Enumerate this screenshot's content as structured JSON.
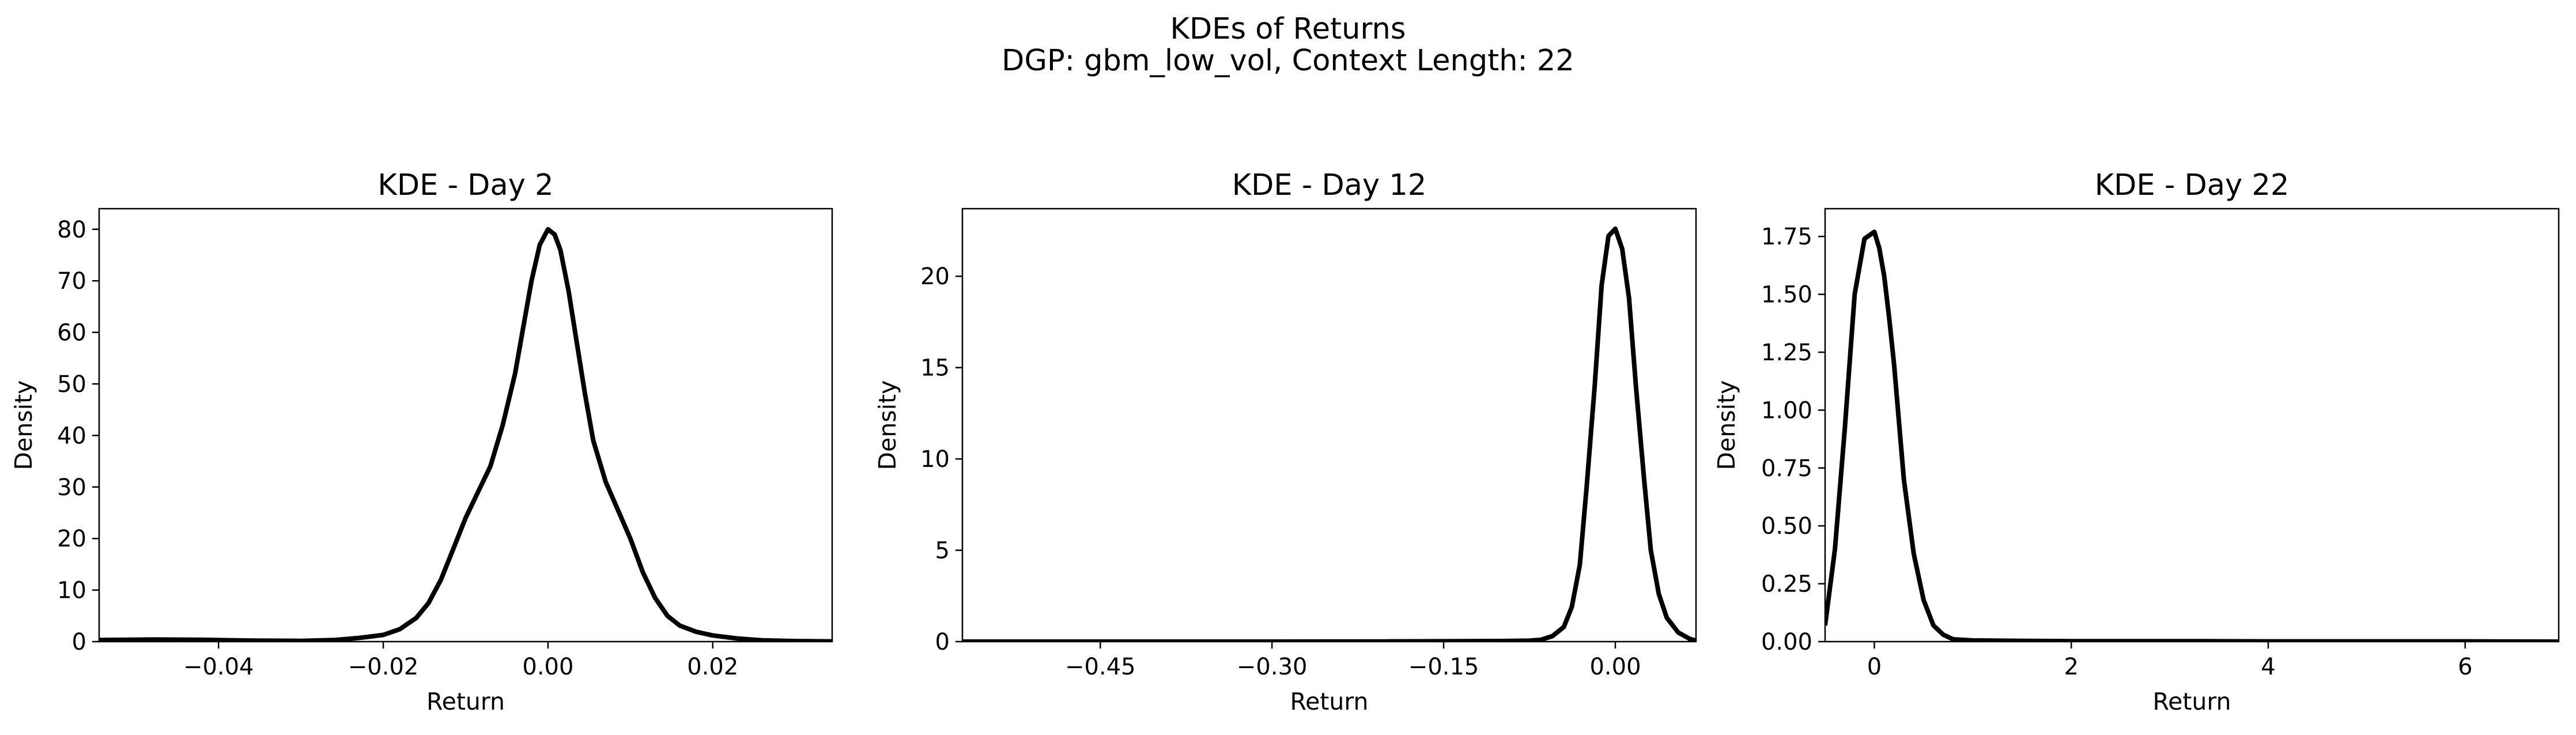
{
  "suptitle": [
    "KDEs of Returns",
    "DGP: gbm_low_vol, Context Length: 22"
  ],
  "chart_data": [
    {
      "type": "line",
      "title": "KDE - Day 2",
      "xlabel": "Return",
      "ylabel": "Density",
      "xlim": [
        -0.0545,
        0.0345
      ],
      "ylim": [
        0,
        84
      ],
      "xticks": [
        -0.04,
        -0.02,
        0.0,
        0.02
      ],
      "xtick_labels": [
        "−0.04",
        "−0.02",
        "0.00",
        "0.02"
      ],
      "yticks": [
        0,
        10,
        20,
        30,
        40,
        50,
        60,
        70,
        80
      ],
      "ytick_labels": [
        "0",
        "10",
        "20",
        "30",
        "40",
        "50",
        "60",
        "70",
        "80"
      ],
      "grid": false,
      "series": [
        {
          "color": "#000000",
          "x": [
            -0.0545,
            -0.048,
            -0.042,
            -0.036,
            -0.03,
            -0.026,
            -0.023,
            -0.02,
            -0.018,
            -0.016,
            -0.0145,
            -0.013,
            -0.0115,
            -0.01,
            -0.0085,
            -0.007,
            -0.0055,
            -0.004,
            -0.003,
            -0.002,
            -0.001,
            0.0,
            0.0008,
            0.0015,
            0.0025,
            0.0035,
            0.0045,
            0.0055,
            0.007,
            0.0085,
            0.01,
            0.0115,
            0.013,
            0.0145,
            0.016,
            0.018,
            0.02,
            0.023,
            0.026,
            0.03,
            0.0345
          ],
          "y": [
            0.3,
            0.4,
            0.35,
            0.2,
            0.15,
            0.3,
            0.7,
            1.3,
            2.4,
            4.6,
            7.5,
            12,
            18,
            24,
            29,
            34,
            42,
            52,
            61,
            70,
            77,
            80,
            79,
            76,
            68,
            58,
            48,
            39,
            31,
            25.5,
            20,
            13.5,
            8.5,
            5,
            3.1,
            1.9,
            1.2,
            0.6,
            0.25,
            0.1,
            0.05
          ]
        }
      ]
    },
    {
      "type": "line",
      "title": "KDE - Day 12",
      "xlabel": "Return",
      "ylabel": "Density",
      "xlim": [
        -0.5705,
        0.0705
      ],
      "ylim": [
        0,
        23.7
      ],
      "xticks": [
        -0.45,
        -0.3,
        -0.15,
        0.0
      ],
      "xtick_labels": [
        "−0.45",
        "−0.30",
        "−0.15",
        "0.00"
      ],
      "yticks": [
        0,
        5,
        10,
        15,
        20
      ],
      "ytick_labels": [
        "0",
        "5",
        "10",
        "15",
        "20"
      ],
      "grid": false,
      "series": [
        {
          "color": "#000000",
          "x": [
            -0.5705,
            -0.45,
            -0.3,
            -0.2,
            -0.15,
            -0.1,
            -0.075,
            -0.065,
            -0.055,
            -0.045,
            -0.038,
            -0.031,
            -0.025,
            -0.018,
            -0.012,
            -0.006,
            0.0,
            0.006,
            0.012,
            0.018,
            0.025,
            0.031,
            0.038,
            0.045,
            0.055,
            0.065,
            0.0705
          ],
          "y": [
            0,
            0,
            0,
            0.01,
            0.02,
            0.03,
            0.05,
            0.1,
            0.3,
            0.8,
            1.9,
            4.2,
            8.5,
            14,
            19.5,
            22.2,
            22.6,
            21.5,
            18.8,
            14,
            9,
            5,
            2.6,
            1.3,
            0.5,
            0.15,
            0.05
          ]
        }
      ]
    },
    {
      "type": "line",
      "title": "KDE - Day 22",
      "xlabel": "Return",
      "ylabel": "Density",
      "xlim": [
        -0.5,
        6.95
      ],
      "ylim": [
        0,
        1.87
      ],
      "xticks": [
        0,
        2,
        4,
        6
      ],
      "xtick_labels": [
        "0",
        "2",
        "4",
        "6"
      ],
      "yticks": [
        0.0,
        0.25,
        0.5,
        0.75,
        1.0,
        1.25,
        1.5,
        1.75
      ],
      "ytick_labels": [
        "0.00",
        "0.25",
        "0.50",
        "0.75",
        "1.00",
        "1.25",
        "1.50",
        "1.75"
      ],
      "grid": false,
      "series": [
        {
          "color": "#000000",
          "x": [
            -0.5,
            -0.4,
            -0.3,
            -0.2,
            -0.1,
            0.0,
            0.05,
            0.1,
            0.15,
            0.2,
            0.3,
            0.4,
            0.5,
            0.6,
            0.7,
            0.8,
            1.0,
            1.5,
            2.0,
            3.0,
            4.0,
            5.0,
            6.0,
            6.95
          ],
          "y": [
            0.07,
            0.4,
            0.92,
            1.5,
            1.74,
            1.77,
            1.7,
            1.58,
            1.4,
            1.2,
            0.7,
            0.38,
            0.18,
            0.07,
            0.03,
            0.01,
            0.005,
            0.003,
            0.002,
            0.002,
            0.001,
            0.001,
            0.001,
            0.0
          ]
        }
      ]
    }
  ]
}
